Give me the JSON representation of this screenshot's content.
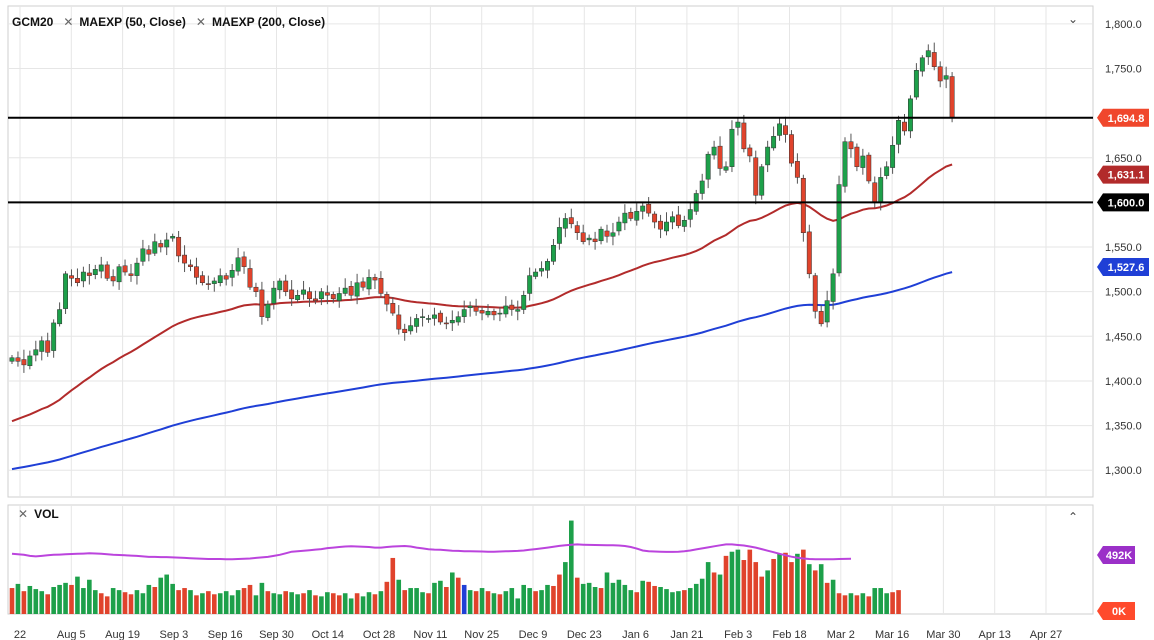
{
  "legend": {
    "symbol": "GCM20",
    "indicator_1": "MAEXP (50, Close)",
    "indicator_2": "MAEXP (200, Close)",
    "remove_glyph": "✕",
    "collapse_glyph": "⌄"
  },
  "volume_pane": {
    "label": "VOL",
    "remove_glyph": "✕",
    "expand_glyph": "⌃",
    "axis_labels": [
      "492K",
      "0K"
    ],
    "badge_colors": {
      "492K": "#9b30c8",
      "0K": "#ff4a2c"
    }
  },
  "colors": {
    "up": "#1da04a",
    "down": "#e0432c",
    "ma50": "#b22b2b",
    "ma200": "#1f3fd6",
    "vol_ma": "#bb44dd",
    "hline": "#000000",
    "price_badge": "#f0472c",
    "grid": "#e6e6e6"
  },
  "chart_data": {
    "type": "candlestick",
    "title": "",
    "xlabel": "",
    "ylabel": "",
    "ylim": [
      1270,
      1820
    ],
    "y_ticks": [
      "1,800.0",
      "1,750.0",
      "1,650.0",
      "1,550.0",
      "1,500.0",
      "1,450.0",
      "1,400.0",
      "1,350.0",
      "1,300.0"
    ],
    "x_ticks": [
      "22",
      "Aug 5",
      "Aug 19",
      "Sep 3",
      "Sep 16",
      "Sep 30",
      "Oct 14",
      "Oct 28",
      "Nov 11",
      "Nov 25",
      "Dec 9",
      "Dec 23",
      "Jan 6",
      "Jan 21",
      "Feb 3",
      "Feb 18",
      "Mar 2",
      "Mar 16",
      "Mar 30",
      "Apr 13",
      "Apr 27"
    ],
    "grid": true,
    "horizontal_lines": [
      {
        "value": 1694.8,
        "label": "1,694.8",
        "color": "#f0472c"
      },
      {
        "value": 1600.0,
        "label": "1,600.0",
        "color": "#000000"
      }
    ],
    "indicator_badges": [
      {
        "value": 1631.1,
        "label": "1,631.1",
        "color": "#b22b2b"
      },
      {
        "value": 1527.6,
        "label": "1,527.6",
        "color": "#1f3fd6"
      }
    ],
    "closes": [
      1426,
      1422,
      1418,
      1428,
      1435,
      1445,
      1432,
      1465,
      1480,
      1520,
      1515,
      1510,
      1522,
      1518,
      1525,
      1530,
      1515,
      1512,
      1528,
      1522,
      1518,
      1532,
      1548,
      1542,
      1556,
      1550,
      1558,
      1562,
      1540,
      1532,
      1528,
      1516,
      1510,
      1508,
      1512,
      1518,
      1514,
      1524,
      1538,
      1528,
      1505,
      1500,
      1472,
      1486,
      1504,
      1512,
      1500,
      1492,
      1496,
      1502,
      1492,
      1490,
      1500,
      1496,
      1492,
      1498,
      1504,
      1496,
      1510,
      1505,
      1516,
      1513,
      1498,
      1486,
      1476,
      1458,
      1454,
      1462,
      1470,
      1472,
      1470,
      1474,
      1466,
      1464,
      1468,
      1472,
      1480,
      1484,
      1478,
      1476,
      1478,
      1474,
      1476,
      1484,
      1480,
      1480,
      1496,
      1518,
      1522,
      1526,
      1534,
      1552,
      1572,
      1582,
      1576,
      1566,
      1556,
      1560,
      1556,
      1570,
      1562,
      1566,
      1578,
      1588,
      1582,
      1590,
      1596,
      1588,
      1578,
      1570,
      1578,
      1584,
      1574,
      1580,
      1592,
      1610,
      1624,
      1654,
      1662,
      1638,
      1640,
      1682,
      1690,
      1660,
      1652,
      1608,
      1640,
      1662,
      1674,
      1688,
      1676,
      1644,
      1628,
      1566,
      1520,
      1478,
      1464,
      1490,
      1520,
      1620,
      1668,
      1660,
      1640,
      1652,
      1624,
      1600,
      1628,
      1640,
      1664,
      1692,
      1680,
      1716,
      1748,
      1762,
      1770,
      1752,
      1736,
      1742,
      1694.8
    ],
    "volume_ylim": [
      0,
      1050
    ],
    "volume": [
      [
        250,
        "down"
      ],
      [
        290,
        "up"
      ],
      [
        220,
        "down"
      ],
      [
        270,
        "up"
      ],
      [
        240,
        "up"
      ],
      [
        220,
        "up"
      ],
      [
        190,
        "down"
      ],
      [
        260,
        "up"
      ],
      [
        280,
        "up"
      ],
      [
        300,
        "up"
      ],
      [
        280,
        "down"
      ],
      [
        360,
        "up"
      ],
      [
        250,
        "up"
      ],
      [
        330,
        "up"
      ],
      [
        230,
        "up"
      ],
      [
        200,
        "down"
      ],
      [
        170,
        "down"
      ],
      [
        250,
        "up"
      ],
      [
        230,
        "up"
      ],
      [
        210,
        "down"
      ],
      [
        190,
        "down"
      ],
      [
        230,
        "up"
      ],
      [
        200,
        "up"
      ],
      [
        280,
        "up"
      ],
      [
        260,
        "down"
      ],
      [
        350,
        "up"
      ],
      [
        380,
        "up"
      ],
      [
        290,
        "up"
      ],
      [
        230,
        "down"
      ],
      [
        250,
        "down"
      ],
      [
        230,
        "up"
      ],
      [
        180,
        "down"
      ],
      [
        200,
        "up"
      ],
      [
        220,
        "down"
      ],
      [
        190,
        "down"
      ],
      [
        200,
        "up"
      ],
      [
        220,
        "up"
      ],
      [
        180,
        "up"
      ],
      [
        230,
        "up"
      ],
      [
        250,
        "down"
      ],
      [
        280,
        "down"
      ],
      [
        180,
        "up"
      ],
      [
        300,
        "up"
      ],
      [
        220,
        "down"
      ],
      [
        200,
        "up"
      ],
      [
        190,
        "up"
      ],
      [
        220,
        "down"
      ],
      [
        210,
        "up"
      ],
      [
        190,
        "up"
      ],
      [
        200,
        "down"
      ],
      [
        230,
        "up"
      ],
      [
        180,
        "down"
      ],
      [
        170,
        "up"
      ],
      [
        210,
        "up"
      ],
      [
        200,
        "down"
      ],
      [
        180,
        "down"
      ],
      [
        200,
        "up"
      ],
      [
        150,
        "up"
      ],
      [
        200,
        "down"
      ],
      [
        170,
        "up"
      ],
      [
        210,
        "up"
      ],
      [
        190,
        "down"
      ],
      [
        220,
        "up"
      ],
      [
        310,
        "down"
      ],
      [
        540,
        "down"
      ],
      [
        330,
        "up"
      ],
      [
        230,
        "down"
      ],
      [
        250,
        "up"
      ],
      [
        250,
        "up"
      ],
      [
        210,
        "up"
      ],
      [
        200,
        "down"
      ],
      [
        300,
        "up"
      ],
      [
        320,
        "up"
      ],
      [
        260,
        "down"
      ],
      [
        400,
        "up"
      ],
      [
        350,
        "down"
      ],
      [
        280,
        "blue"
      ],
      [
        230,
        "up"
      ],
      [
        220,
        "down"
      ],
      [
        250,
        "up"
      ],
      [
        220,
        "down"
      ],
      [
        200,
        "up"
      ],
      [
        190,
        "down"
      ],
      [
        220,
        "up"
      ],
      [
        250,
        "up"
      ],
      [
        150,
        "up"
      ],
      [
        280,
        "up"
      ],
      [
        250,
        "up"
      ],
      [
        220,
        "down"
      ],
      [
        230,
        "up"
      ],
      [
        280,
        "up"
      ],
      [
        270,
        "down"
      ],
      [
        380,
        "down"
      ],
      [
        500,
        "up"
      ],
      [
        900,
        "up"
      ],
      [
        350,
        "down"
      ],
      [
        290,
        "up"
      ],
      [
        300,
        "up"
      ],
      [
        260,
        "up"
      ],
      [
        250,
        "down"
      ],
      [
        400,
        "up"
      ],
      [
        300,
        "up"
      ],
      [
        330,
        "up"
      ],
      [
        280,
        "up"
      ],
      [
        230,
        "up"
      ],
      [
        210,
        "down"
      ],
      [
        320,
        "up"
      ],
      [
        310,
        "down"
      ],
      [
        270,
        "down"
      ],
      [
        260,
        "up"
      ],
      [
        240,
        "up"
      ],
      [
        210,
        "up"
      ],
      [
        220,
        "up"
      ],
      [
        230,
        "down"
      ],
      [
        250,
        "up"
      ],
      [
        290,
        "up"
      ],
      [
        340,
        "up"
      ],
      [
        500,
        "up"
      ],
      [
        400,
        "down"
      ],
      [
        380,
        "up"
      ],
      [
        560,
        "down"
      ],
      [
        600,
        "up"
      ],
      [
        620,
        "up"
      ],
      [
        520,
        "down"
      ],
      [
        620,
        "down"
      ],
      [
        500,
        "down"
      ],
      [
        360,
        "down"
      ],
      [
        420,
        "up"
      ],
      [
        530,
        "down"
      ],
      [
        580,
        "up"
      ],
      [
        590,
        "down"
      ],
      [
        500,
        "down"
      ],
      [
        580,
        "up"
      ],
      [
        620,
        "down"
      ],
      [
        480,
        "up"
      ],
      [
        420,
        "down"
      ],
      [
        480,
        "up"
      ],
      [
        300,
        "down"
      ],
      [
        330,
        "up"
      ],
      [
        200,
        "down"
      ],
      [
        180,
        "down"
      ],
      [
        200,
        "up"
      ],
      [
        180,
        "down"
      ],
      [
        200,
        "up"
      ],
      [
        170,
        "down"
      ],
      [
        250,
        "up"
      ],
      [
        250,
        "up"
      ],
      [
        200,
        "up"
      ],
      [
        210,
        "down"
      ],
      [
        230,
        "down"
      ]
    ],
    "volume_ma": [
      580,
      575,
      570,
      560,
      555,
      560,
      565,
      570,
      572,
      575,
      578,
      580,
      582,
      585,
      583,
      580,
      575,
      570,
      568,
      565,
      563,
      560,
      555,
      550,
      550,
      548,
      548,
      545,
      543,
      540,
      538,
      535,
      532,
      530,
      530,
      530,
      528,
      528,
      530,
      532,
      535,
      540,
      545,
      550,
      560,
      570,
      585,
      600,
      605,
      610,
      615,
      620,
      625,
      635,
      640,
      645,
      650,
      653,
      650,
      648,
      645,
      640,
      640,
      645,
      650,
      652,
      655,
      650,
      640,
      632,
      624,
      620,
      618,
      615,
      610,
      608,
      605,
      604,
      603,
      602,
      600,
      600,
      602,
      604,
      606,
      608,
      612,
      618,
      625,
      632,
      640,
      648,
      656,
      662,
      668,
      670,
      668,
      666,
      665,
      664,
      663,
      662,
      660,
      655,
      645,
      630,
      612,
      605,
      602,
      600,
      598,
      598,
      600,
      604,
      612,
      622,
      632,
      642,
      652,
      662,
      670,
      670,
      665,
      660,
      650,
      640,
      625,
      610,
      595,
      580,
      565,
      552,
      542,
      535,
      530,
      528,
      527,
      527,
      528,
      530,
      531,
      532
    ]
  }
}
